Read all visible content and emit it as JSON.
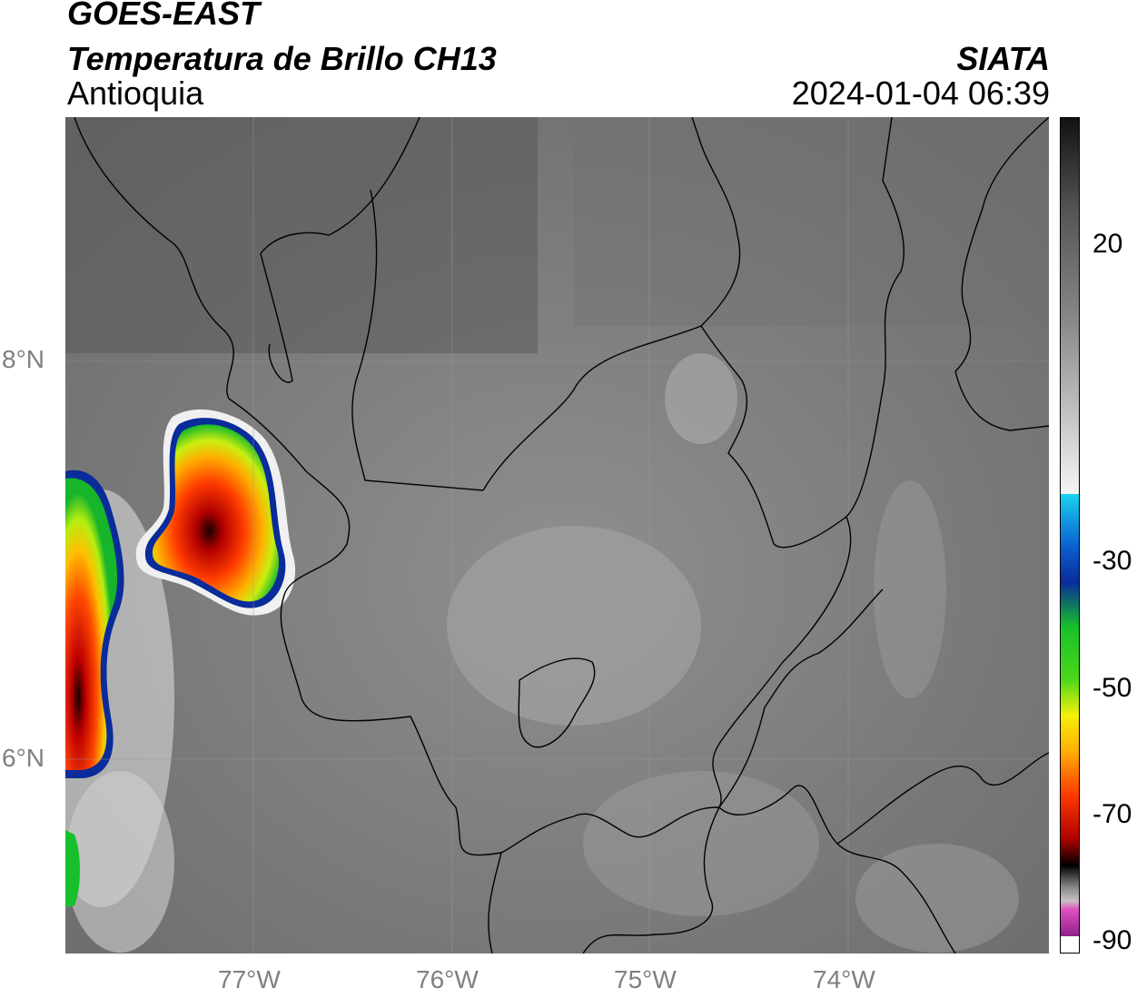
{
  "header": {
    "satellite": "GOES-EAST",
    "product": "Temperatura de Brillo CH13",
    "region": "Antioquia",
    "brand": "SIATA",
    "timestamp": "2024-01-04 06:39"
  },
  "map": {
    "lat_ticks": [
      "8°N",
      "6°N"
    ],
    "lon_ticks": [
      "77°W",
      "76°W",
      "75°W",
      "74°W"
    ]
  },
  "colorbar": {
    "ticks": [
      "20",
      "-30",
      "-50",
      "-70",
      "-90"
    ],
    "colors": {
      "warm_dark": "#1a1a1a",
      "warm_mid": "#6e6e6e",
      "warm_light": "#d8d8d8",
      "cyan": "#19d3f0",
      "blue": "#0a2c9a",
      "green": "#17c02a",
      "yellow": "#f4f10a",
      "orange": "#ff9a00",
      "red": "#e00000",
      "black": "#000000",
      "gray_light": "#c9c0c4",
      "magenta": "#e050c0",
      "purple": "#8e1f8a"
    }
  }
}
